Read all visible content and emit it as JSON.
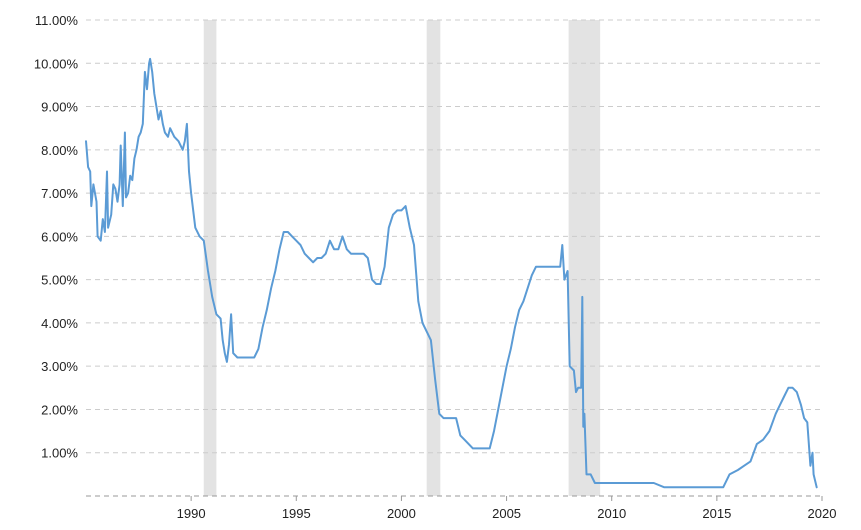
{
  "chart_data": {
    "type": "line",
    "title": "",
    "xlabel": "",
    "ylabel": "",
    "xlim": [
      1985.0,
      2020.0
    ],
    "ylim": [
      0,
      11
    ],
    "grid": true,
    "legend": "none",
    "y_ticks": [
      1,
      2,
      3,
      4,
      5,
      6,
      7,
      8,
      9,
      10,
      11
    ],
    "y_tick_labels": [
      "1.00%",
      "2.00%",
      "3.00%",
      "4.00%",
      "5.00%",
      "6.00%",
      "7.00%",
      "8.00%",
      "9.00%",
      "10.00%",
      "11.00%"
    ],
    "x_ticks": [
      1990,
      1995,
      2000,
      2005,
      2010,
      2015,
      2020
    ],
    "x_tick_labels": [
      "1990",
      "1995",
      "2000",
      "2005",
      "2010",
      "2015",
      "2020"
    ],
    "recessions": [
      [
        1990.6,
        1991.2
      ],
      [
        2001.2,
        2001.85
      ],
      [
        2007.95,
        2009.45
      ]
    ],
    "colors": {
      "line": "#5b9bd5",
      "recession": "#e3e3e3",
      "grid": "#cccccc",
      "axis": "#999999"
    },
    "series": [
      {
        "values": [
          [
            1985.0,
            8.2
          ],
          [
            1985.1,
            7.6
          ],
          [
            1985.2,
            7.5
          ],
          [
            1985.25,
            6.7
          ],
          [
            1985.35,
            7.2
          ],
          [
            1985.5,
            6.8
          ],
          [
            1985.55,
            6.0
          ],
          [
            1985.7,
            5.9
          ],
          [
            1985.8,
            6.4
          ],
          [
            1985.9,
            6.1
          ],
          [
            1986.0,
            7.5
          ],
          [
            1986.05,
            6.2
          ],
          [
            1986.2,
            6.5
          ],
          [
            1986.3,
            7.2
          ],
          [
            1986.4,
            7.1
          ],
          [
            1986.5,
            6.8
          ],
          [
            1986.6,
            7.2
          ],
          [
            1986.65,
            8.1
          ],
          [
            1986.75,
            6.7
          ],
          [
            1986.85,
            8.4
          ],
          [
            1986.9,
            6.9
          ],
          [
            1987.0,
            7.0
          ],
          [
            1987.1,
            7.4
          ],
          [
            1987.2,
            7.3
          ],
          [
            1987.3,
            7.8
          ],
          [
            1987.4,
            8.0
          ],
          [
            1987.5,
            8.3
          ],
          [
            1987.6,
            8.4
          ],
          [
            1987.7,
            8.6
          ],
          [
            1987.8,
            9.8
          ],
          [
            1987.9,
            9.4
          ],
          [
            1988.0,
            10.0
          ],
          [
            1988.05,
            10.1
          ],
          [
            1988.15,
            9.8
          ],
          [
            1988.25,
            9.3
          ],
          [
            1988.35,
            9.0
          ],
          [
            1988.45,
            8.7
          ],
          [
            1988.55,
            8.9
          ],
          [
            1988.65,
            8.6
          ],
          [
            1988.75,
            8.4
          ],
          [
            1988.9,
            8.3
          ],
          [
            1989.0,
            8.5
          ],
          [
            1989.2,
            8.3
          ],
          [
            1989.4,
            8.2
          ],
          [
            1989.6,
            8.0
          ],
          [
            1989.7,
            8.2
          ],
          [
            1989.8,
            8.6
          ],
          [
            1989.9,
            7.5
          ],
          [
            1990.0,
            7.0
          ],
          [
            1990.2,
            6.2
          ],
          [
            1990.4,
            6.0
          ],
          [
            1990.6,
            5.9
          ],
          [
            1990.8,
            5.2
          ],
          [
            1991.0,
            4.6
          ],
          [
            1991.2,
            4.2
          ],
          [
            1991.4,
            4.1
          ],
          [
            1991.5,
            3.6
          ],
          [
            1991.6,
            3.3
          ],
          [
            1991.7,
            3.1
          ],
          [
            1991.8,
            3.5
          ],
          [
            1991.9,
            4.2
          ],
          [
            1992.0,
            3.3
          ],
          [
            1992.2,
            3.2
          ],
          [
            1992.5,
            3.2
          ],
          [
            1993.0,
            3.2
          ],
          [
            1993.2,
            3.4
          ],
          [
            1993.4,
            3.9
          ],
          [
            1993.6,
            4.3
          ],
          [
            1993.8,
            4.8
          ],
          [
            1994.0,
            5.2
          ],
          [
            1994.2,
            5.7
          ],
          [
            1994.4,
            6.1
          ],
          [
            1994.6,
            6.1
          ],
          [
            1994.8,
            6.0
          ],
          [
            1995.0,
            5.9
          ],
          [
            1995.2,
            5.8
          ],
          [
            1995.4,
            5.6
          ],
          [
            1995.6,
            5.5
          ],
          [
            1995.8,
            5.4
          ],
          [
            1996.0,
            5.5
          ],
          [
            1996.2,
            5.5
          ],
          [
            1996.4,
            5.6
          ],
          [
            1996.6,
            5.9
          ],
          [
            1996.8,
            5.7
          ],
          [
            1997.0,
            5.7
          ],
          [
            1997.2,
            6.0
          ],
          [
            1997.4,
            5.7
          ],
          [
            1997.6,
            5.6
          ],
          [
            1997.8,
            5.6
          ],
          [
            1998.0,
            5.6
          ],
          [
            1998.2,
            5.6
          ],
          [
            1998.4,
            5.5
          ],
          [
            1998.6,
            5.0
          ],
          [
            1998.8,
            4.9
          ],
          [
            1999.0,
            4.9
          ],
          [
            1999.2,
            5.3
          ],
          [
            1999.4,
            6.2
          ],
          [
            1999.6,
            6.5
          ],
          [
            1999.8,
            6.6
          ],
          [
            2000.0,
            6.6
          ],
          [
            2000.2,
            6.7
          ],
          [
            2000.4,
            6.2
          ],
          [
            2000.6,
            5.8
          ],
          [
            2000.8,
            4.5
          ],
          [
            2001.0,
            4.0
          ],
          [
            2001.2,
            3.8
          ],
          [
            2001.4,
            3.6
          ],
          [
            2001.6,
            2.7
          ],
          [
            2001.8,
            1.9
          ],
          [
            2002.0,
            1.8
          ],
          [
            2002.2,
            1.8
          ],
          [
            2002.4,
            1.8
          ],
          [
            2002.6,
            1.8
          ],
          [
            2002.8,
            1.4
          ],
          [
            2003.0,
            1.3
          ],
          [
            2003.2,
            1.2
          ],
          [
            2003.4,
            1.1
          ],
          [
            2003.6,
            1.1
          ],
          [
            2003.8,
            1.1
          ],
          [
            2004.0,
            1.1
          ],
          [
            2004.2,
            1.1
          ],
          [
            2004.4,
            1.5
          ],
          [
            2004.6,
            2.0
          ],
          [
            2004.8,
            2.5
          ],
          [
            2005.0,
            3.0
          ],
          [
            2005.2,
            3.4
          ],
          [
            2005.4,
            3.9
          ],
          [
            2005.6,
            4.3
          ],
          [
            2005.8,
            4.5
          ],
          [
            2006.0,
            4.8
          ],
          [
            2006.2,
            5.1
          ],
          [
            2006.4,
            5.3
          ],
          [
            2006.6,
            5.3
          ],
          [
            2006.8,
            5.3
          ],
          [
            2007.0,
            5.3
          ],
          [
            2007.2,
            5.3
          ],
          [
            2007.4,
            5.3
          ],
          [
            2007.55,
            5.3
          ],
          [
            2007.65,
            5.8
          ],
          [
            2007.75,
            5.0
          ],
          [
            2007.9,
            5.2
          ],
          [
            2008.0,
            3.0
          ],
          [
            2008.2,
            2.9
          ],
          [
            2008.3,
            2.4
          ],
          [
            2008.4,
            2.5
          ],
          [
            2008.55,
            2.5
          ],
          [
            2008.6,
            4.6
          ],
          [
            2008.65,
            1.6
          ],
          [
            2008.7,
            1.9
          ],
          [
            2008.8,
            0.5
          ],
          [
            2009.0,
            0.5
          ],
          [
            2009.2,
            0.3
          ],
          [
            2009.5,
            0.3
          ],
          [
            2010.0,
            0.3
          ],
          [
            2010.5,
            0.3
          ],
          [
            2011.0,
            0.3
          ],
          [
            2011.5,
            0.3
          ],
          [
            2012.0,
            0.3
          ],
          [
            2012.5,
            0.2
          ],
          [
            2013.0,
            0.2
          ],
          [
            2013.5,
            0.2
          ],
          [
            2014.0,
            0.2
          ],
          [
            2014.5,
            0.2
          ],
          [
            2015.0,
            0.2
          ],
          [
            2015.3,
            0.2
          ],
          [
            2015.6,
            0.5
          ],
          [
            2016.0,
            0.6
          ],
          [
            2016.3,
            0.7
          ],
          [
            2016.6,
            0.8
          ],
          [
            2016.9,
            1.2
          ],
          [
            2017.2,
            1.3
          ],
          [
            2017.5,
            1.5
          ],
          [
            2017.8,
            1.9
          ],
          [
            2018.0,
            2.1
          ],
          [
            2018.2,
            2.3
          ],
          [
            2018.4,
            2.5
          ],
          [
            2018.6,
            2.5
          ],
          [
            2018.8,
            2.4
          ],
          [
            2019.0,
            2.1
          ],
          [
            2019.15,
            1.8
          ],
          [
            2019.3,
            1.7
          ],
          [
            2019.45,
            0.7
          ],
          [
            2019.55,
            1.0
          ],
          [
            2019.6,
            0.5
          ],
          [
            2019.75,
            0.2
          ]
        ]
      }
    ]
  }
}
